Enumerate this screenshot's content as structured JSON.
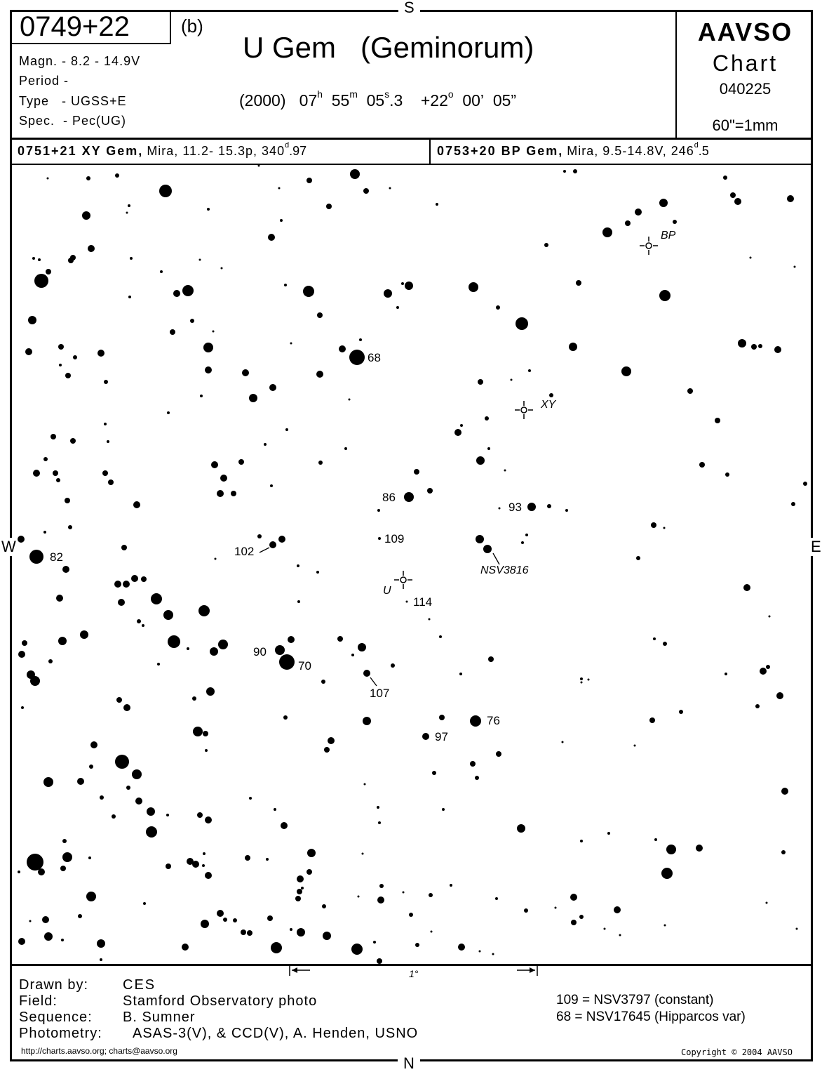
{
  "compass": {
    "top": "S",
    "bottom": "N",
    "left": "W",
    "right": "E"
  },
  "header": {
    "chart_id": "0749+22",
    "chart_version": "(b)",
    "star_name": "U Gem   (Geminorum)",
    "magnitude": "Magn. - 8.2 - 14.9V",
    "period": "Period -",
    "type": "Type   - UGSS+E",
    "spectrum": "Spec.  - Pec(UG)",
    "coords": {
      "epoch": "(2000)",
      "ra_h": "07",
      "ra_m": "55",
      "ra_s": "05",
      "ra_s_frac": ".3",
      "dec_d": "+22",
      "dec_m": "00",
      "dec_s": "05"
    },
    "org": "AAVSO",
    "chart_label": "Chart",
    "chart_date": "040225",
    "scale": "60\"=1mm"
  },
  "other_variables": [
    {
      "id_name": "0751+21 XY Gem,",
      "desc": "Mira, 11.2- 15.3p, 340",
      "period_d": "d",
      "period_frac": ".97"
    },
    {
      "id_name": "0753+20 BP Gem,",
      "desc": "Mira, 9.5-14.8V, 246",
      "period_d": "d",
      "period_frac": ".5"
    }
  ],
  "field": {
    "variable_markers": {
      "u": "U",
      "xy": "XY",
      "bp": "BP"
    },
    "labels": {
      "s68": "68",
      "s86": "86",
      "s93": "93",
      "s109": "109",
      "s102": "102",
      "s82": "82",
      "nsv3816": "NSV3816",
      "s114": "114",
      "s90": "90",
      "s70": "70",
      "s107": "107",
      "s76": "76",
      "s97": "97"
    },
    "scale_bar": "1°"
  },
  "footer": {
    "drawn_by_label": "Drawn by:",
    "drawn_by": "CES",
    "field_label": "Field:",
    "field": "Stamford Observatory photo",
    "sequence_label": "Sequence:",
    "sequence": "B. Sumner",
    "photometry_label": "Photometry:",
    "photometry": "ASAS-3(V), & CCD(V), A. Henden, USNO",
    "note1": "109 = NSV3797 (constant)",
    "note2": "68 = NSV17645 (Hipparcos var)",
    "url": "http://charts.aavso.org; charts@aavso.org",
    "copyright": "Copyright © 2004 AAVSO"
  }
}
